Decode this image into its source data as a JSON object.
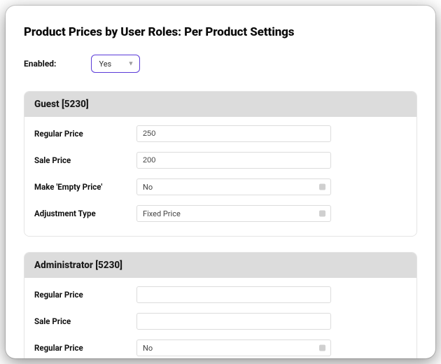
{
  "title": "Product Prices by User Roles: Per Product Settings",
  "enabled": {
    "label": "Enabled:",
    "value": "Yes"
  },
  "panels": [
    {
      "key": "guest",
      "header": "Guest [5230]",
      "rows": [
        {
          "key": "regular",
          "label": "Regular Price",
          "type": "text",
          "value": "250"
        },
        {
          "key": "sale",
          "label": "Sale Price",
          "type": "text",
          "value": "200"
        },
        {
          "key": "empty",
          "label": "Make 'Empty Price'",
          "type": "select",
          "value": "No"
        },
        {
          "key": "adjtype",
          "label": "Adjustment Type",
          "type": "select",
          "value": "Fixed Price"
        }
      ]
    },
    {
      "key": "admin",
      "header": "Administrator [5230]",
      "rows": [
        {
          "key": "regular",
          "label": "Regular Price",
          "type": "text",
          "value": ""
        },
        {
          "key": "sale",
          "label": "Sale Price",
          "type": "text",
          "value": ""
        },
        {
          "key": "regular2",
          "label": "Regular Price",
          "type": "select",
          "value": "No"
        }
      ]
    }
  ],
  "styling": {
    "accent": "#5b3bd8",
    "panel_header_bg": "#dcdcdc",
    "border_color": "#e4e4e4",
    "input_border": "#dcdcdc",
    "text_color": "#111",
    "window_bg": "#ffffff",
    "font_label_pt": 11.5,
    "font_title_pt": 17
  }
}
